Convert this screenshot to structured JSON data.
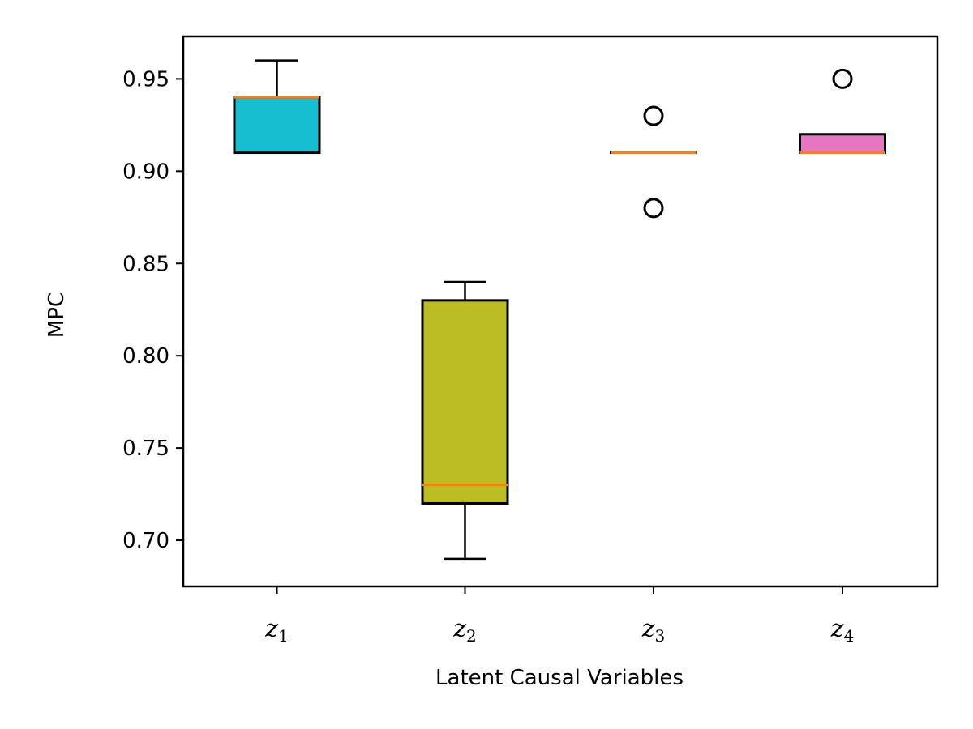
{
  "chart_data": {
    "type": "box",
    "title": "",
    "xlabel": "Latent Causal Variables",
    "ylabel": "MPC",
    "ylim": [
      0.675,
      0.973
    ],
    "y_ticks": [
      0.7,
      0.75,
      0.8,
      0.85,
      0.9,
      0.95
    ],
    "y_tick_labels": [
      "0.70",
      "0.75",
      "0.80",
      "0.85",
      "0.90",
      "0.95"
    ],
    "grid": false,
    "median_color": "#ff7f0e",
    "categories": [
      {
        "base": "z",
        "sub": "1"
      },
      {
        "base": "z",
        "sub": "2"
      },
      {
        "base": "z",
        "sub": "3"
      },
      {
        "base": "z",
        "sub": "4"
      }
    ],
    "boxes": [
      {
        "whisker_low": 0.91,
        "q1": 0.91,
        "median": 0.94,
        "q3": 0.94,
        "whisker_high": 0.96,
        "outliers": [],
        "color": "#17becf"
      },
      {
        "whisker_low": 0.69,
        "q1": 0.72,
        "median": 0.73,
        "q3": 0.83,
        "whisker_high": 0.84,
        "outliers": [],
        "color": "#bcbd22"
      },
      {
        "whisker_low": 0.91,
        "q1": 0.91,
        "median": 0.91,
        "q3": 0.91,
        "whisker_high": 0.91,
        "outliers": [
          0.93,
          0.88
        ],
        "color": "#7f7f7f"
      },
      {
        "whisker_low": 0.91,
        "q1": 0.91,
        "median": 0.91,
        "q3": 0.92,
        "whisker_high": 0.92,
        "outliers": [
          0.95
        ],
        "color": "#e377c2"
      }
    ]
  }
}
